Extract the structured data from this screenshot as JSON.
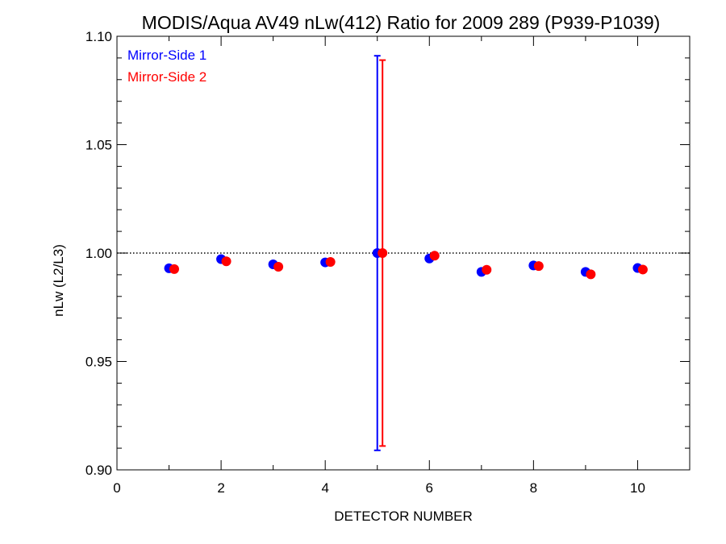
{
  "chart_data": {
    "type": "scatter",
    "title": "MODIS/Aqua AV49 nLw(412) Ratio for 2009 289 (P939-P1039)",
    "xlabel": "DETECTOR NUMBER",
    "ylabel": "nLw (L2/L3)",
    "xlim": [
      0,
      11
    ],
    "ylim": [
      0.9,
      1.1
    ],
    "xticks": [
      0,
      2,
      4,
      6,
      8,
      10
    ],
    "xtick_labels": [
      "0",
      "2",
      "4",
      "6",
      "8",
      "10"
    ],
    "yticks": [
      0.9,
      0.95,
      1.0,
      1.05,
      1.1
    ],
    "ytick_labels": [
      "0.90",
      "0.95",
      "1.00",
      "1.05",
      "1.10"
    ],
    "reference_line": 1.0,
    "legend_position": "top-left",
    "series": [
      {
        "name": "Mirror-Side 1",
        "color": "#0000ff",
        "x": [
          1,
          2,
          3,
          4,
          5,
          6,
          7,
          8,
          9,
          10
        ],
        "y": [
          0.993,
          0.9972,
          0.9948,
          0.9957,
          1.0,
          0.9975,
          0.9913,
          0.9943,
          0.9913,
          0.9931
        ],
        "error_bars": [
          {
            "x": 5,
            "low": 0.909,
            "high": 1.091
          }
        ]
      },
      {
        "name": "Mirror-Side 2",
        "color": "#ff0000",
        "x": [
          1.1,
          2.1,
          3.1,
          4.1,
          5.1,
          6.1,
          7.1,
          8.1,
          9.1,
          10.1
        ],
        "y": [
          0.9926,
          0.9962,
          0.9937,
          0.9959,
          1.0,
          0.9988,
          0.9923,
          0.994,
          0.9902,
          0.9924
        ],
        "error_bars": [
          {
            "x": 5.1,
            "low": 0.911,
            "high": 1.089
          }
        ]
      }
    ]
  }
}
